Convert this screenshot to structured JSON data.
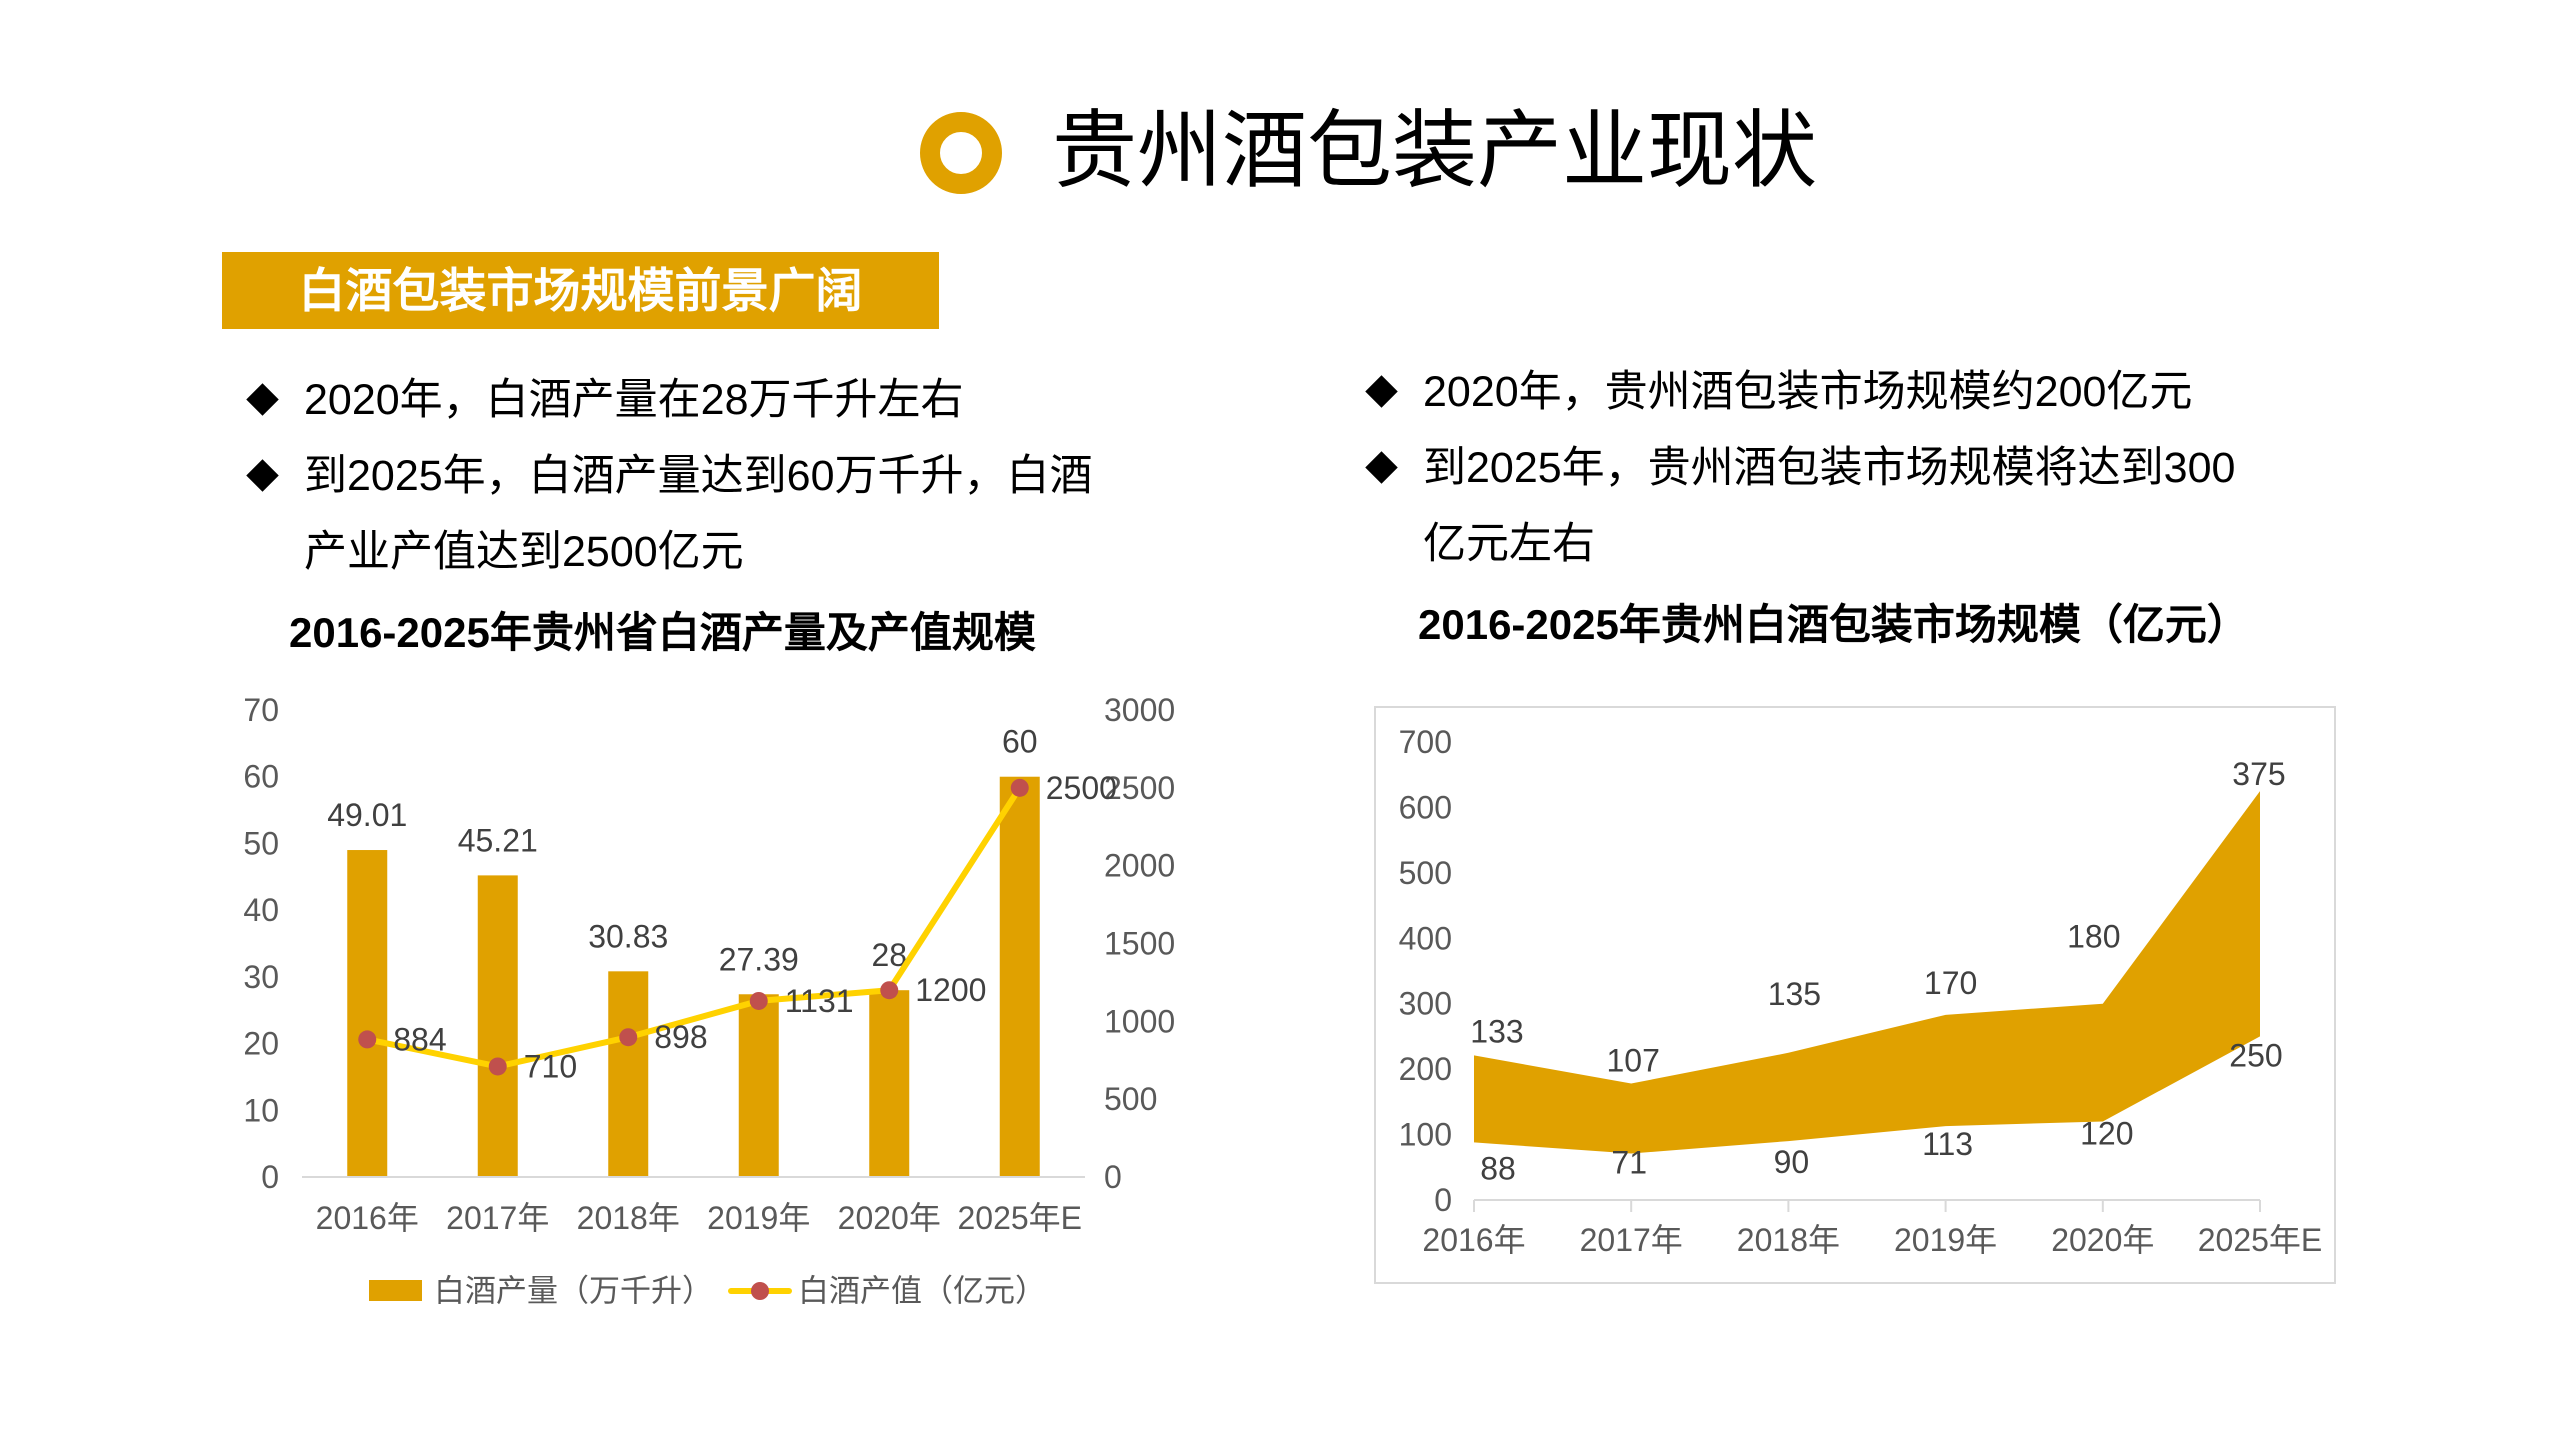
{
  "colors": {
    "accent": "#E0A100",
    "line": "#FFD200",
    "marker": "#C0504D",
    "text": "#000000",
    "badge_text": "#FFFFFF",
    "axis_text": "#595959",
    "data_label": "#404040",
    "axis_line": "#D9D9D9"
  },
  "header": {
    "title": "贵州酒包装产业现状",
    "icon": "ring-icon"
  },
  "section_badge": {
    "label": "白酒包装市场规模前景广阔"
  },
  "left_panel": {
    "bullets": [
      {
        "icon": "diamond-bullet",
        "lines": [
          "2020年，白酒产量在28万千升左右"
        ]
      },
      {
        "icon": "diamond-bullet",
        "lines": [
          "到2025年，白酒产量达到60万千升，白酒",
          "产业产值达到2500亿元"
        ]
      }
    ]
  },
  "right_panel": {
    "bullets": [
      {
        "icon": "diamond-bullet",
        "lines": [
          "2020年，贵州酒包装市场规模约200亿元"
        ]
      },
      {
        "icon": "diamond-bullet",
        "lines": [
          "到2025年，贵州酒包装市场规模将达到300",
          "亿元左右"
        ]
      }
    ]
  },
  "chart_data": [
    {
      "type": "bar",
      "combo": "bar+line",
      "title": "2016-2025年贵州省白酒产量及产值规模",
      "categories": [
        "2016年",
        "2017年",
        "2018年",
        "2019年",
        "2020年",
        "2025年E"
      ],
      "series": [
        {
          "name": "白酒产量（万千升）",
          "type": "bar",
          "axis": "left",
          "color": "#E0A100",
          "values": [
            49.01,
            45.21,
            30.83,
            27.39,
            28,
            60
          ]
        },
        {
          "name": "白酒产值（亿元）",
          "type": "line",
          "axis": "right",
          "color": "#FFD200",
          "marker_color": "#C0504D",
          "values": [
            884,
            710,
            898,
            1131,
            1200,
            2500
          ]
        }
      ],
      "y_left": {
        "min": 0,
        "max": 70,
        "step": 10,
        "ticks": [
          0,
          10,
          20,
          30,
          40,
          50,
          60,
          70
        ]
      },
      "y_right": {
        "min": 0,
        "max": 3000,
        "step": 500,
        "ticks": [
          0,
          500,
          1000,
          1500,
          2000,
          2500,
          3000
        ]
      },
      "xlabel": "",
      "ylabel": "",
      "grid": false,
      "data_labels": true,
      "legend": "bottom"
    },
    {
      "type": "area",
      "stacked": true,
      "title": "2016-2025年贵州白酒包装市场规模（亿元）",
      "categories": [
        "2016年",
        "2017年",
        "2018年",
        "2019年",
        "2020年",
        "2025年E"
      ],
      "series": [
        {
          "name": "",
          "fill": "none",
          "values": [
            88,
            71,
            90,
            113,
            120,
            250
          ]
        },
        {
          "name": "",
          "fill": "#E0A100",
          "values": [
            133,
            107,
            135,
            170,
            180,
            375
          ]
        }
      ],
      "ylim": [
        0,
        700
      ],
      "ytick_step": 100,
      "yticks": [
        0,
        100,
        200,
        300,
        400,
        500,
        600,
        700
      ],
      "xlabel": "",
      "ylabel": "",
      "grid": false,
      "data_labels": true,
      "legend": "none",
      "frame": true
    }
  ]
}
